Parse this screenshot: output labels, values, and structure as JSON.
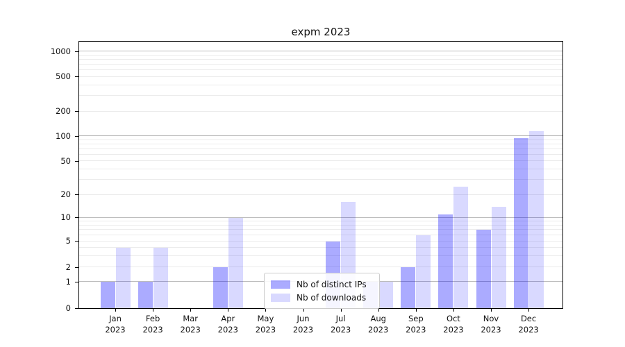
{
  "chart_data": {
    "type": "bar",
    "title": "expm 2023",
    "year_label": "2023",
    "months": [
      "Jan",
      "Feb",
      "Mar",
      "Apr",
      "May",
      "Jun",
      "Jul",
      "Aug",
      "Sep",
      "Oct",
      "Nov",
      "Dec"
    ],
    "series": [
      {
        "name": "Nb of distinct IPs",
        "color": "rgba(0,0,255,0.33)",
        "values": [
          1,
          1,
          0,
          2,
          0,
          0,
          5,
          1,
          2,
          11,
          7,
          95
        ]
      },
      {
        "name": "Nb of downloads",
        "color": "rgba(0,0,255,0.15)",
        "values": [
          4,
          4,
          0,
          10,
          0,
          0,
          16,
          1,
          6,
          25,
          14,
          115
        ]
      }
    ],
    "y_ticks": [
      0,
      1,
      2,
      5,
      10,
      20,
      50,
      100,
      200,
      500,
      1000
    ],
    "xlabel": "",
    "ylabel": "",
    "axis_hints": {
      "y_scale": "symlog-like (linear 0-1, logarithmic above)",
      "ylim": [
        0,
        1400
      ],
      "grid": true,
      "legend_position": "inside lower-center"
    },
    "colors": {
      "grid_major": "#bcbcbc",
      "grid_minor": "#ebebeb",
      "spine": "#000000",
      "text": "#111111",
      "background": "#ffffff"
    }
  }
}
